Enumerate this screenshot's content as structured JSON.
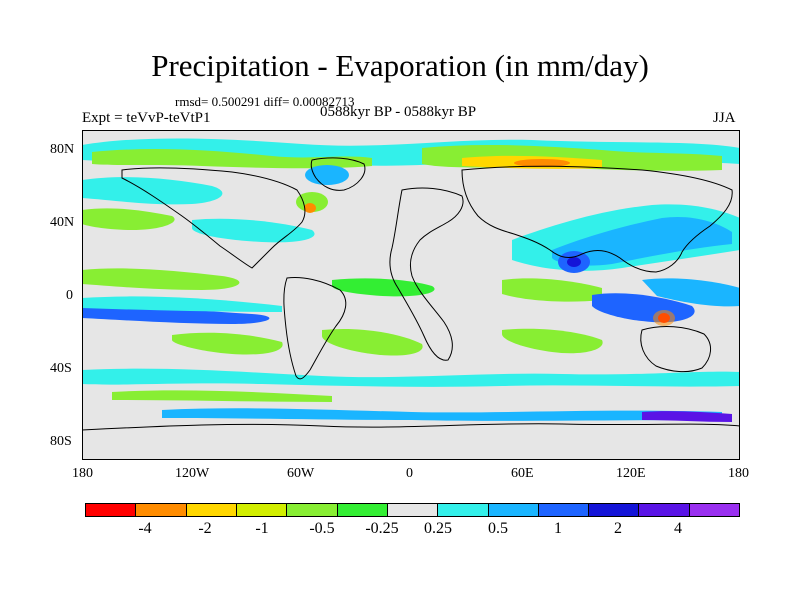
{
  "title": "Precipitation - Evaporation (in mm/day)",
  "stats": "rmsd= 0.500291 diff= 0.00082713",
  "experiment": "Expt = teVvP-teVtP1",
  "period": "0588kyr BP - 0588kyr BP",
  "season": "JJA",
  "y_axis_labels": [
    "80N",
    "40N",
    "0",
    "40S",
    "80S"
  ],
  "x_axis_labels": [
    "180",
    "120W",
    "60W",
    "0",
    "60E",
    "120E",
    "180"
  ],
  "colorbar": {
    "colors": [
      "#ff0000",
      "#ff8c00",
      "#ffd700",
      "#d2ee00",
      "#88ee33",
      "#33ee33",
      "#e6e6e6",
      "#33f0ea",
      "#1ab5ff",
      "#1e64ff",
      "#1414d8",
      "#5a14e6",
      "#9a30f0"
    ],
    "labels": [
      "-4",
      "-2",
      "-1",
      "-0.5",
      "-0.25",
      "0.25",
      "0.5",
      "1",
      "2",
      "4"
    ]
  },
  "map": {
    "background_color": "#e6e6e6",
    "projection": "cylindrical equidistant",
    "lon_range": [
      -180,
      180
    ],
    "lat_range": [
      -90,
      90
    ]
  }
}
